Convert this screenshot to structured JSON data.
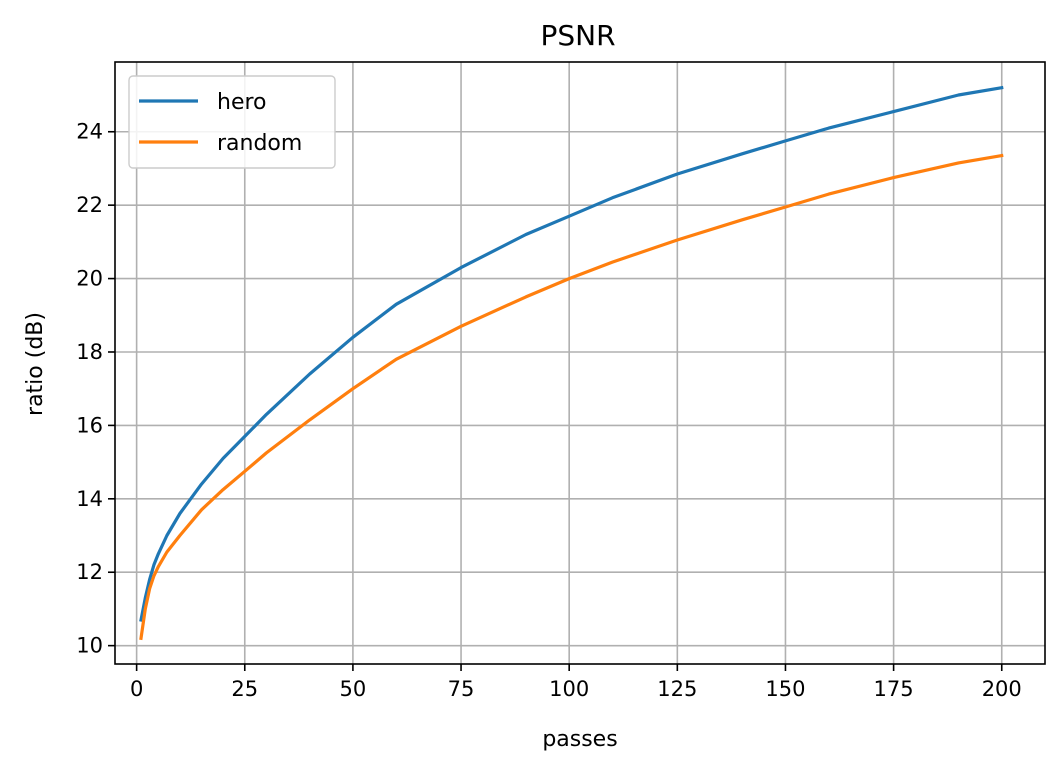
{
  "chart_data": {
    "type": "line",
    "title": "PSNR",
    "xlabel": "passes",
    "ylabel": "ratio (dB)",
    "xlim": [
      -5,
      210
    ],
    "ylim": [
      9.5,
      25.9
    ],
    "xticks": [
      0,
      25,
      50,
      75,
      100,
      125,
      150,
      175,
      200
    ],
    "yticks": [
      10,
      12,
      14,
      16,
      18,
      20,
      22,
      24
    ],
    "grid": true,
    "legend_position": "top-left",
    "series": [
      {
        "name": "hero",
        "color": "#1f77b4",
        "x": [
          1,
          2,
          3,
          4,
          5,
          7,
          10,
          15,
          20,
          25,
          30,
          40,
          50,
          60,
          75,
          90,
          100,
          110,
          125,
          140,
          150,
          160,
          175,
          190,
          200
        ],
        "y": [
          10.7,
          11.3,
          11.8,
          12.2,
          12.5,
          13.0,
          13.6,
          14.4,
          15.1,
          15.7,
          16.3,
          17.4,
          18.4,
          19.3,
          20.3,
          21.2,
          21.7,
          22.2,
          22.85,
          23.4,
          23.75,
          24.1,
          24.55,
          25.0,
          25.2
        ]
      },
      {
        "name": "random",
        "color": "#ff7f0e",
        "x": [
          1,
          2,
          3,
          4,
          5,
          7,
          10,
          15,
          20,
          25,
          30,
          40,
          50,
          60,
          75,
          90,
          100,
          110,
          125,
          140,
          150,
          160,
          175,
          190,
          200
        ],
        "y": [
          10.2,
          11.0,
          11.55,
          11.9,
          12.15,
          12.55,
          13.0,
          13.7,
          14.25,
          14.75,
          15.25,
          16.15,
          17.0,
          17.8,
          18.7,
          19.5,
          20.0,
          20.45,
          21.05,
          21.6,
          21.95,
          22.3,
          22.75,
          23.15,
          23.35
        ]
      }
    ]
  }
}
